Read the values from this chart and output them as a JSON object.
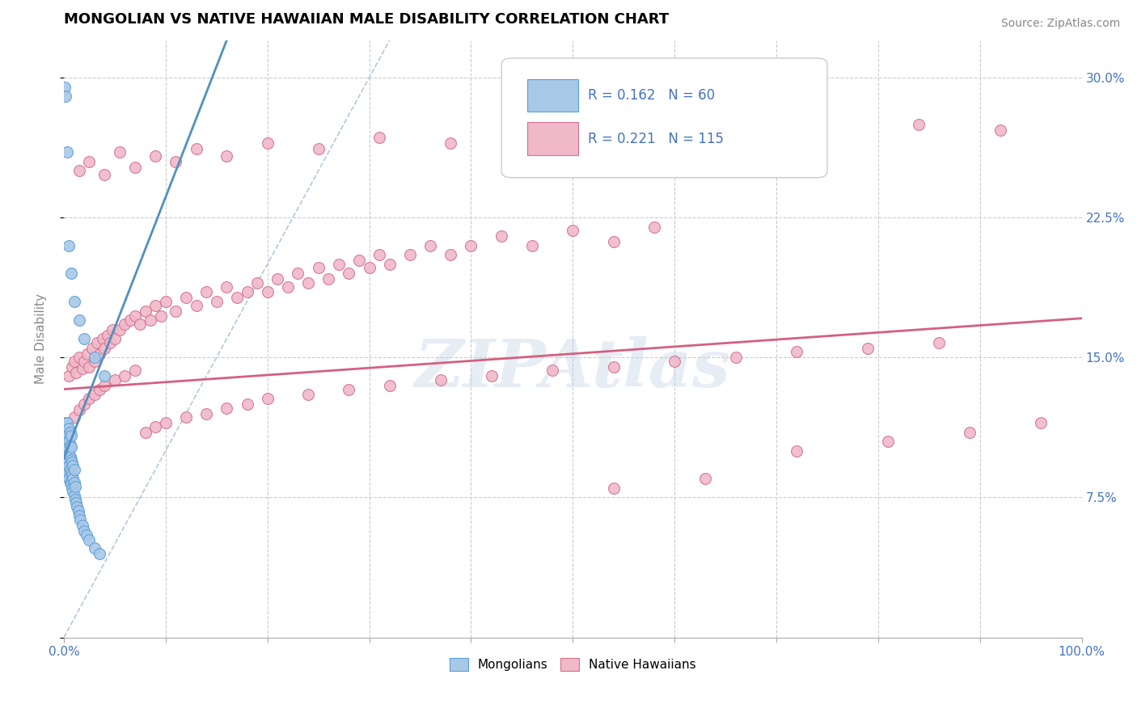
{
  "title": "MONGOLIAN VS NATIVE HAWAIIAN MALE DISABILITY CORRELATION CHART",
  "source": "Source: ZipAtlas.com",
  "ylabel": "Male Disability",
  "xlim": [
    0,
    1.0
  ],
  "ylim": [
    0,
    0.32
  ],
  "xticks": [
    0.0,
    0.1,
    0.2,
    0.3,
    0.4,
    0.5,
    0.6,
    0.7,
    0.8,
    0.9,
    1.0
  ],
  "xticklabels": [
    "0.0%",
    "",
    "",
    "",
    "",
    "",
    "",
    "",
    "",
    "",
    "100.0%"
  ],
  "yticks": [
    0.0,
    0.075,
    0.15,
    0.225,
    0.3
  ],
  "yticklabels_right": [
    "",
    "7.5%",
    "15.0%",
    "22.5%",
    "30.0%"
  ],
  "legend_text1": "R = 0.162   N = 60",
  "legend_text2": "R = 0.221   N = 115",
  "legend_label_blue": "Mongolians",
  "legend_label_pink": "Native Hawaiians",
  "blue_fill": "#a8c8e8",
  "blue_edge": "#5a9fd4",
  "pink_fill": "#f0b8c8",
  "pink_edge": "#d47090",
  "pink_line": "#d46080",
  "blue_line": "#5090c0",
  "watermark": "ZIPAtlas",
  "mongolian_x": [
    0.001,
    0.001,
    0.002,
    0.002,
    0.002,
    0.003,
    0.003,
    0.003,
    0.003,
    0.004,
    0.004,
    0.004,
    0.004,
    0.005,
    0.005,
    0.005,
    0.005,
    0.005,
    0.006,
    0.006,
    0.006,
    0.006,
    0.006,
    0.007,
    0.007,
    0.007,
    0.007,
    0.007,
    0.008,
    0.008,
    0.008,
    0.009,
    0.009,
    0.009,
    0.01,
    0.01,
    0.01,
    0.011,
    0.011,
    0.012,
    0.013,
    0.014,
    0.015,
    0.016,
    0.018,
    0.02,
    0.022,
    0.025,
    0.03,
    0.035,
    0.001,
    0.002,
    0.003,
    0.005,
    0.007,
    0.01,
    0.015,
    0.02,
    0.03,
    0.04
  ],
  "mongolian_y": [
    0.1,
    0.11,
    0.095,
    0.105,
    0.115,
    0.09,
    0.1,
    0.108,
    0.115,
    0.088,
    0.095,
    0.102,
    0.11,
    0.085,
    0.092,
    0.098,
    0.105,
    0.112,
    0.083,
    0.09,
    0.097,
    0.103,
    0.11,
    0.082,
    0.088,
    0.095,
    0.102,
    0.108,
    0.08,
    0.087,
    0.094,
    0.078,
    0.085,
    0.092,
    0.076,
    0.083,
    0.09,
    0.074,
    0.081,
    0.072,
    0.07,
    0.068,
    0.065,
    0.063,
    0.06,
    0.057,
    0.055,
    0.052,
    0.048,
    0.045,
    0.295,
    0.29,
    0.26,
    0.21,
    0.195,
    0.18,
    0.17,
    0.16,
    0.15,
    0.14
  ],
  "hawaiian_x": [
    0.005,
    0.008,
    0.01,
    0.012,
    0.015,
    0.018,
    0.02,
    0.023,
    0.025,
    0.028,
    0.03,
    0.033,
    0.035,
    0.038,
    0.04,
    0.043,
    0.045,
    0.048,
    0.05,
    0.055,
    0.06,
    0.065,
    0.07,
    0.075,
    0.08,
    0.085,
    0.09,
    0.095,
    0.1,
    0.11,
    0.12,
    0.13,
    0.14,
    0.15,
    0.16,
    0.17,
    0.18,
    0.19,
    0.2,
    0.21,
    0.22,
    0.23,
    0.24,
    0.25,
    0.26,
    0.27,
    0.28,
    0.29,
    0.3,
    0.31,
    0.32,
    0.34,
    0.36,
    0.38,
    0.4,
    0.43,
    0.46,
    0.5,
    0.54,
    0.58,
    0.01,
    0.015,
    0.02,
    0.025,
    0.03,
    0.035,
    0.04,
    0.05,
    0.06,
    0.07,
    0.08,
    0.09,
    0.1,
    0.12,
    0.14,
    0.16,
    0.18,
    0.2,
    0.24,
    0.28,
    0.32,
    0.37,
    0.42,
    0.48,
    0.54,
    0.6,
    0.66,
    0.72,
    0.79,
    0.86,
    0.015,
    0.025,
    0.04,
    0.055,
    0.07,
    0.09,
    0.11,
    0.13,
    0.16,
    0.2,
    0.25,
    0.31,
    0.38,
    0.46,
    0.55,
    0.64,
    0.74,
    0.84,
    0.92,
    0.54,
    0.63,
    0.72,
    0.81,
    0.89,
    0.96
  ],
  "hawaiian_y": [
    0.14,
    0.145,
    0.148,
    0.142,
    0.15,
    0.144,
    0.148,
    0.152,
    0.145,
    0.155,
    0.148,
    0.158,
    0.152,
    0.16,
    0.155,
    0.162,
    0.158,
    0.165,
    0.16,
    0.165,
    0.168,
    0.17,
    0.172,
    0.168,
    0.175,
    0.17,
    0.178,
    0.172,
    0.18,
    0.175,
    0.182,
    0.178,
    0.185,
    0.18,
    0.188,
    0.182,
    0.185,
    0.19,
    0.185,
    0.192,
    0.188,
    0.195,
    0.19,
    0.198,
    0.192,
    0.2,
    0.195,
    0.202,
    0.198,
    0.205,
    0.2,
    0.205,
    0.21,
    0.205,
    0.21,
    0.215,
    0.21,
    0.218,
    0.212,
    0.22,
    0.118,
    0.122,
    0.125,
    0.128,
    0.13,
    0.133,
    0.135,
    0.138,
    0.14,
    0.143,
    0.11,
    0.113,
    0.115,
    0.118,
    0.12,
    0.123,
    0.125,
    0.128,
    0.13,
    0.133,
    0.135,
    0.138,
    0.14,
    0.143,
    0.145,
    0.148,
    0.15,
    0.153,
    0.155,
    0.158,
    0.25,
    0.255,
    0.248,
    0.26,
    0.252,
    0.258,
    0.255,
    0.262,
    0.258,
    0.265,
    0.262,
    0.268,
    0.265,
    0.27,
    0.268,
    0.272,
    0.27,
    0.275,
    0.272,
    0.08,
    0.085,
    0.1,
    0.105,
    0.11,
    0.115
  ]
}
